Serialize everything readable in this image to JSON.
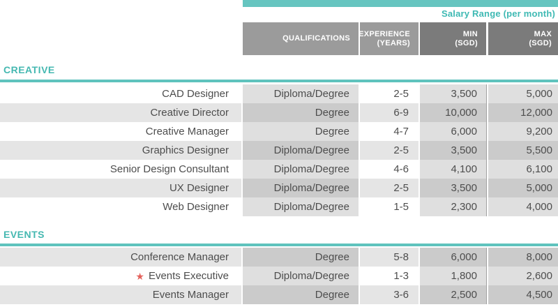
{
  "colors": {
    "accent_teal": "#66c5c0",
    "teal_text": "#3eb9b3",
    "header_gray_light": "#9b9b9b",
    "header_gray_dark": "#7b7b7b",
    "row_tint_light": "#dfdfdf",
    "row_tint_dark": "#cbcbcb",
    "body_text": "#4d4d4d",
    "star_coral": "#e4615b"
  },
  "icons": {
    "star": "★"
  },
  "header": {
    "salary_range_label": "Salary Range (per month)",
    "columns": [
      {
        "line1": "QUALIFICATIONS",
        "line2": ""
      },
      {
        "line1": "EXPERIENCE",
        "line2": "(YEARS)"
      },
      {
        "line1": "MIN",
        "line2": "(SGD)"
      },
      {
        "line1": "MAX",
        "line2": "(SGD)"
      }
    ]
  },
  "sections": [
    {
      "title": "CREATIVE",
      "rows": [
        {
          "role": "CAD Designer",
          "qualifications": "Diploma/Degree",
          "experience": "2-5",
          "min": "3,500",
          "max": "5,000",
          "starred": false
        },
        {
          "role": "Creative Director",
          "qualifications": "Degree",
          "experience": "6-9",
          "min": "10,000",
          "max": "12,000",
          "starred": false
        },
        {
          "role": "Creative Manager",
          "qualifications": "Degree",
          "experience": "4-7",
          "min": "6,000",
          "max": "9,200",
          "starred": false
        },
        {
          "role": "Graphics Designer",
          "qualifications": "Diploma/Degree",
          "experience": "2-5",
          "min": "3,500",
          "max": "5,500",
          "starred": false
        },
        {
          "role": "Senior Design Consultant",
          "qualifications": "Diploma/Degree",
          "experience": "4-6",
          "min": "4,100",
          "max": "6,100",
          "starred": false
        },
        {
          "role": "UX Designer",
          "qualifications": "Diploma/Degree",
          "experience": "2-5",
          "min": "3,500",
          "max": "5,000",
          "starred": false
        },
        {
          "role": "Web Designer",
          "qualifications": "Diploma/Degree",
          "experience": "1-5",
          "min": "2,300",
          "max": "4,000",
          "starred": false
        }
      ]
    },
    {
      "title": "EVENTS",
      "rows": [
        {
          "role": "Conference Manager",
          "qualifications": "Degree",
          "experience": "5-8",
          "min": "6,000",
          "max": "8,000",
          "starred": false
        },
        {
          "role": "Events Executive",
          "qualifications": "Diploma/Degree",
          "experience": "1-3",
          "min": "1,800",
          "max": "2,600",
          "starred": true
        },
        {
          "role": "Events Manager",
          "qualifications": "Degree",
          "experience": "3-6",
          "min": "2,500",
          "max": "4,500",
          "starred": false
        }
      ]
    }
  ]
}
